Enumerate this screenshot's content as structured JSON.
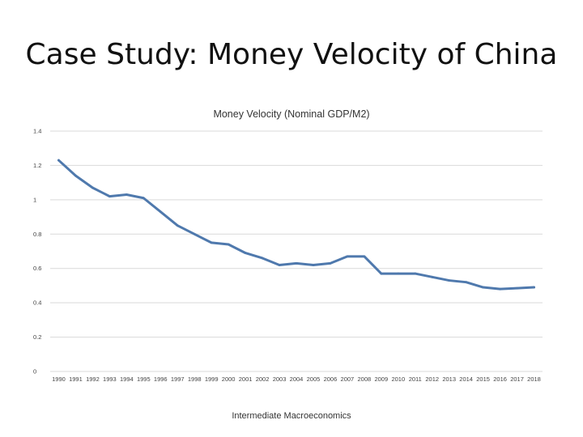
{
  "slide": {
    "title": "Case Study: Money Velocity of China",
    "footer": "Intermediate Macroeconomics"
  },
  "chart_data": {
    "type": "line",
    "title": "Money Velocity (Nominal GDP/M2)",
    "xlabel": "",
    "ylabel": "",
    "ylim": [
      0,
      1.4
    ],
    "yticks": [
      "0",
      "0.2",
      "0.4",
      "0.6",
      "0.8",
      "1",
      "1.2",
      "1.4"
    ],
    "x": [
      "1990",
      "1991",
      "1992",
      "1993",
      "1994",
      "1995",
      "1996",
      "1997",
      "1998",
      "1999",
      "2000",
      "2001",
      "2002",
      "2003",
      "2004",
      "2005",
      "2006",
      "2007",
      "2008",
      "2009",
      "2010",
      "2011",
      "2012",
      "2013",
      "2014",
      "2015",
      "2016",
      "2017",
      "2018"
    ],
    "series": [
      {
        "values": [
          1.23,
          1.14,
          1.07,
          1.02,
          1.03,
          1.01,
          0.93,
          0.85,
          0.8,
          0.75,
          0.74,
          0.69,
          0.66,
          0.62,
          0.63,
          0.62,
          0.63,
          0.67,
          0.67,
          0.57,
          0.57,
          0.57,
          0.55,
          0.53,
          0.52,
          0.49,
          0.48,
          0.485,
          0.49
        ],
        "color": "#4f79ad"
      }
    ],
    "grid": true,
    "legend": "none"
  }
}
